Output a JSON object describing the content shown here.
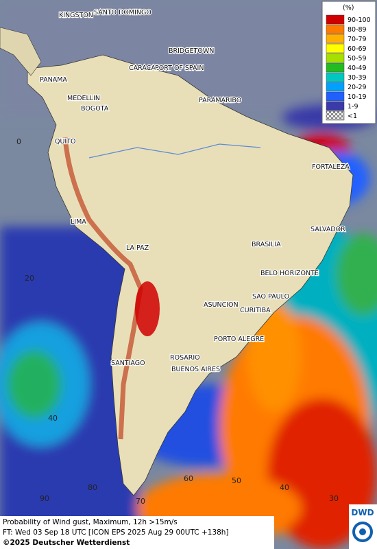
{
  "cities": [
    "KINGSTON",
    "SANTO DOMINGO",
    "BRIDGETOWN",
    "CARACAS",
    "PORT OF SPAIN",
    "PANAMA",
    "MEDELLIN",
    "BOGOTA",
    "PARAMARIBO",
    "QUITO",
    "FORTALEZA",
    "LIMA",
    "SALVADOR",
    "BRASILIA",
    "LA PAZ",
    "BELO HORIZONTE",
    "SAO PAULO",
    "ASUNCION",
    "CURITIBA",
    "PORTO ALEGRE",
    "ROSARIO",
    "SANTIAGO",
    "BUENOS AIRES"
  ],
  "grid_labels": [
    "0",
    "20",
    "40",
    "60",
    "50",
    "40",
    "30",
    "70",
    "80",
    "90"
  ],
  "legend": {
    "title": "(%)",
    "entries": [
      {
        "label": "90-100",
        "color": "#d00000"
      },
      {
        "label": "80-89",
        "color": "#ff7a00"
      },
      {
        "label": "70-79",
        "color": "#ffb000"
      },
      {
        "label": "60-69",
        "color": "#ffff00"
      },
      {
        "label": "50-59",
        "color": "#a6e000"
      },
      {
        "label": "40-49",
        "color": "#22bb22"
      },
      {
        "label": "30-39",
        "color": "#00c8c0"
      },
      {
        "label": "20-29",
        "color": "#00a0ff"
      },
      {
        "label": "10-19",
        "color": "#2060ff"
      },
      {
        "label": "1-9",
        "color": "#3a3aa8"
      },
      {
        "label": "<1",
        "color": "#bbbbbb"
      }
    ]
  },
  "footer": {
    "line1": "Probability of Wind gust, Maximum, 12h >15m/s",
    "line2": "FT: Wed 03 Sep 18 UTC [ICON EPS 2025 Aug 29 00UTC +138h]",
    "line3": "©2025 Deutscher Wetterdienst",
    "logo": "DWD"
  }
}
